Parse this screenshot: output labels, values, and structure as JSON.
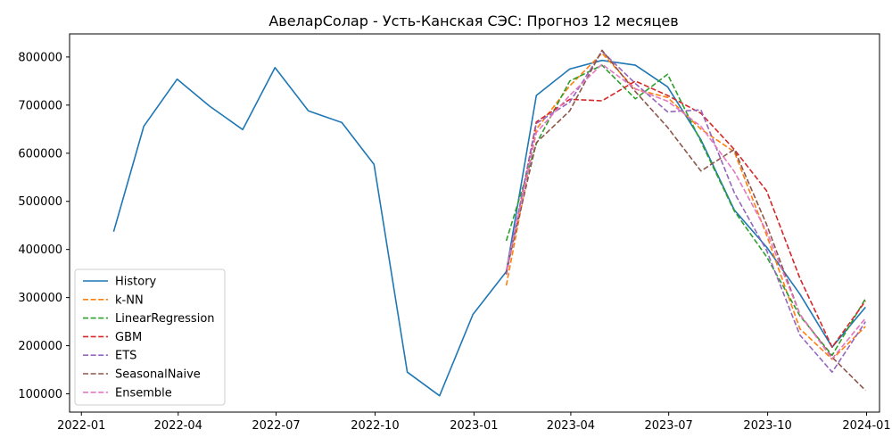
{
  "chart_data": {
    "type": "line",
    "title": "АвеларСолар - Усть-Канская СЭС: Прогноз 12 месяцев",
    "xlabel": "",
    "ylabel": "",
    "x_ticks": [
      "2022-01",
      "2022-04",
      "2022-07",
      "2022-10",
      "2023-01",
      "2023-04",
      "2023-07",
      "2023-10",
      "2024-01"
    ],
    "y_ticks": [
      "100000",
      "200000",
      "300000",
      "400000",
      "500000",
      "600000",
      "700000",
      "800000"
    ],
    "xlim": [
      "2021-12-21",
      "2024-01-13"
    ],
    "ylim": [
      62000,
      848000
    ],
    "grid": false,
    "legend_position": "lower-left",
    "series": [
      {
        "name": "History",
        "color": "#1f77b4",
        "dash": "solid",
        "x": [
          "2022-01-31",
          "2022-02-28",
          "2022-03-31",
          "2022-04-30",
          "2022-05-31",
          "2022-06-30",
          "2022-07-31",
          "2022-08-31",
          "2022-09-30",
          "2022-10-31",
          "2022-11-30",
          "2022-12-31",
          "2023-01-31",
          "2023-02-28",
          "2023-03-31",
          "2023-04-30",
          "2023-05-31",
          "2023-06-30",
          "2023-07-31",
          "2023-08-31",
          "2023-09-30",
          "2023-10-31",
          "2023-11-30",
          "2023-12-31"
        ],
        "values": [
          437000,
          656000,
          754000,
          698000,
          649000,
          778000,
          688000,
          664000,
          577000,
          145000,
          96000,
          265000,
          354000,
          720000,
          775000,
          793000,
          783000,
          738000,
          628000,
          482000,
          405000,
          307000,
          197000,
          280000
        ]
      },
      {
        "name": "k-NN",
        "color": "#ff7f0e",
        "dash": "dashed",
        "x": [
          "2023-01-31",
          "2023-02-28",
          "2023-03-31",
          "2023-04-30",
          "2023-05-31",
          "2023-06-30",
          "2023-07-31",
          "2023-08-31",
          "2023-09-30",
          "2023-10-31",
          "2023-11-30",
          "2023-12-31"
        ],
        "values": [
          325000,
          650000,
          740000,
          808000,
          733000,
          716000,
          650000,
          603000,
          430000,
          235000,
          172000,
          240000
        ]
      },
      {
        "name": "LinearRegression",
        "color": "#2ca02c",
        "dash": "dashed",
        "x": [
          "2023-01-31",
          "2023-02-28",
          "2023-03-31",
          "2023-04-30",
          "2023-05-31",
          "2023-06-30",
          "2023-07-31",
          "2023-08-31",
          "2023-09-30",
          "2023-10-31",
          "2023-11-30",
          "2023-12-31"
        ],
        "values": [
          418000,
          620000,
          750000,
          783000,
          713000,
          764000,
          624000,
          480000,
          385000,
          262000,
          180000,
          298000
        ]
      },
      {
        "name": "GBM",
        "color": "#d62728",
        "dash": "dashed",
        "x": [
          "2023-01-31",
          "2023-02-28",
          "2023-03-31",
          "2023-04-30",
          "2023-05-31",
          "2023-06-30",
          "2023-07-31",
          "2023-08-31",
          "2023-09-30",
          "2023-10-31",
          "2023-11-30",
          "2023-12-31"
        ],
        "values": [
          348000,
          665000,
          712000,
          709000,
          750000,
          720000,
          683000,
          608000,
          522000,
          340000,
          197000,
          293000
        ]
      },
      {
        "name": "ETS",
        "color": "#9467bd",
        "dash": "dashed",
        "x": [
          "2023-01-31",
          "2023-02-28",
          "2023-03-31",
          "2023-04-30",
          "2023-05-31",
          "2023-06-30",
          "2023-07-31",
          "2023-08-31",
          "2023-09-30",
          "2023-10-31",
          "2023-11-30",
          "2023-12-31"
        ],
        "values": [
          350000,
          662000,
          706000,
          812000,
          745000,
          686000,
          690000,
          518000,
          398000,
          222000,
          145000,
          250000
        ]
      },
      {
        "name": "SeasonalNaive",
        "color": "#8c564b",
        "dash": "dashed",
        "x": [
          "2023-01-31",
          "2023-02-28",
          "2023-03-31",
          "2023-04-30",
          "2023-05-31",
          "2023-06-30",
          "2023-07-31",
          "2023-08-31",
          "2023-09-30",
          "2023-10-31",
          "2023-11-30",
          "2023-12-31"
        ],
        "values": [
          354000,
          622000,
          688000,
          814000,
          728000,
          654000,
          563000,
          608000,
          452000,
          265000,
          176000,
          107000
        ]
      },
      {
        "name": "Ensemble",
        "color": "#e377c2",
        "dash": "dashed",
        "x": [
          "2023-01-31",
          "2023-02-28",
          "2023-03-31",
          "2023-04-30",
          "2023-05-31",
          "2023-06-30",
          "2023-07-31",
          "2023-08-31",
          "2023-09-30",
          "2023-10-31",
          "2023-11-30",
          "2023-12-31"
        ],
        "values": [
          357000,
          643000,
          720000,
          785000,
          734000,
          708000,
          656000,
          562000,
          438000,
          265000,
          173000,
          257000
        ]
      }
    ]
  }
}
